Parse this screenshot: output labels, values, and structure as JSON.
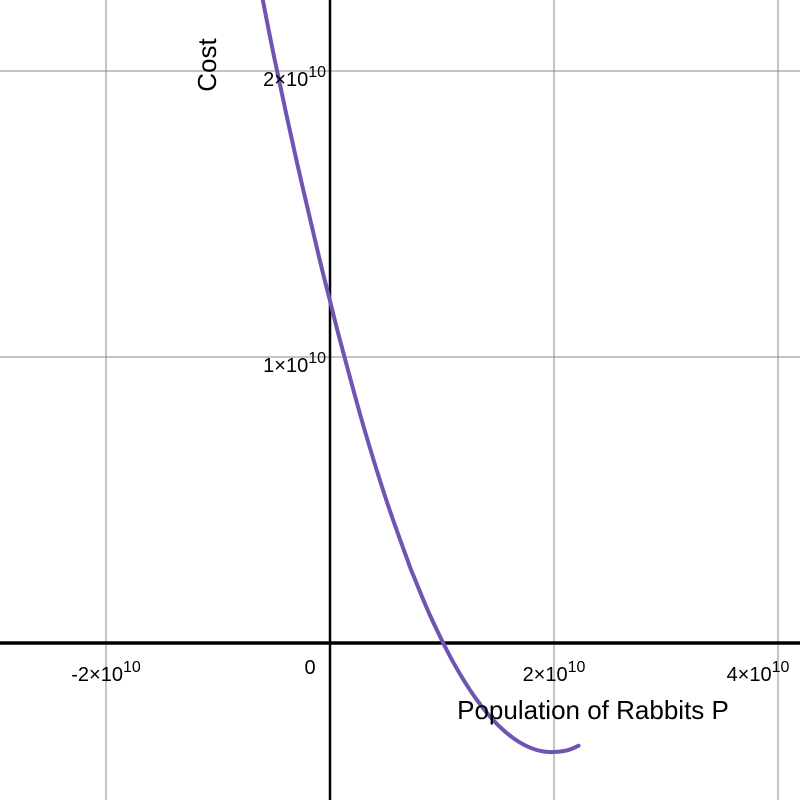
{
  "chart_data": {
    "type": "line",
    "title": "",
    "xlabel": "Population of Rabbits P",
    "ylabel": "Cost",
    "grid": true,
    "xlim": [
      -30000000000,
      42000000000
    ],
    "ylim": [
      -5500000000,
      22500000000
    ],
    "x_ticks": [
      {
        "value": -20000000000,
        "mantissa": "-2",
        "base": "×10",
        "exp": "10"
      },
      {
        "value": 0,
        "mantissa": "0",
        "base": "",
        "exp": ""
      },
      {
        "value": 20000000000,
        "mantissa": "2",
        "base": "×10",
        "exp": "10"
      },
      {
        "value": 40000000000,
        "mantissa": "4",
        "base": "×10",
        "exp": "10"
      }
    ],
    "y_ticks": [
      {
        "value": 10000000000,
        "mantissa": "1",
        "base": "×10",
        "exp": "10"
      },
      {
        "value": 20000000000,
        "mantissa": "2",
        "base": "×10",
        "exp": "10"
      }
    ],
    "series": [
      {
        "color": "#6f55b1",
        "x": [
          -6500000000,
          -5000000000,
          -3000000000,
          -1000000000,
          0,
          1000000000,
          3000000000,
          5000000000,
          7000000000,
          7500000000,
          9000000000,
          11000000000,
          13000000000,
          15000000000,
          17000000000,
          19000000000,
          21000000000,
          22200000000
        ],
        "y": [
          23500000000,
          20510000000,
          16890000000,
          13530000000,
          11960000000,
          10430000000,
          7570000000,
          5030000000,
          2810000000,
          2310000000,
          910000000,
          -670000000,
          -1930000000,
          -2870000000,
          -3490000000,
          -3790000000,
          -3770000000,
          -3590000000
        ]
      }
    ]
  }
}
